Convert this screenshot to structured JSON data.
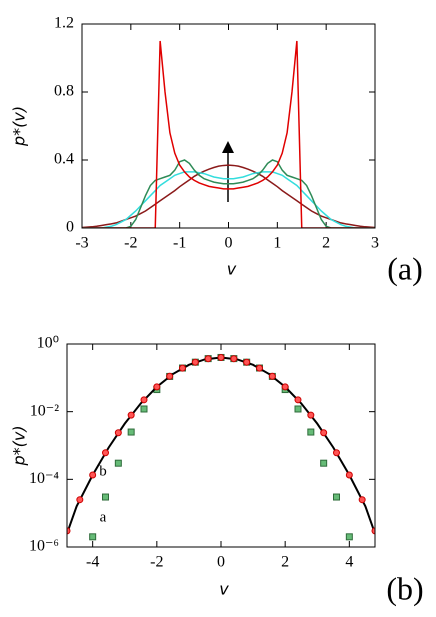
{
  "chart_data": [
    {
      "type": "line",
      "xlabel": "v",
      "ylabel": "p*(v)",
      "panel_label": "(a)",
      "x": [
        -3,
        -2.9,
        -2.8,
        -2.7,
        -2.6,
        -2.5,
        -2.4,
        -2.3,
        -2.2,
        -2.1,
        -2,
        -1.9,
        -1.8,
        -1.7,
        -1.6,
        -1.5,
        -1.4,
        -1.3,
        -1.2,
        -1.1,
        -1,
        -0.9,
        -0.8,
        -0.7,
        -0.6,
        -0.5,
        -0.4,
        -0.3,
        -0.2,
        -0.1,
        0,
        0.1,
        0.2,
        0.3,
        0.4,
        0.5,
        0.6,
        0.7,
        0.8,
        0.9,
        1,
        1.1,
        1.2,
        1.3,
        1.4,
        1.5,
        1.6,
        1.7,
        1.8,
        1.9,
        2,
        2.1,
        2.2,
        2.3,
        2.4,
        2.5,
        2.6,
        2.7,
        2.8,
        2.9,
        3
      ],
      "xlim": [
        -3,
        3
      ],
      "ylim": [
        0,
        1.2
      ],
      "xticks": [
        -3,
        -2,
        -1,
        0,
        1,
        2,
        3
      ],
      "yticks": [
        0,
        0.4,
        0.8,
        1.2
      ],
      "series": [
        {
          "color": "#8b1a1a",
          "values": [
            0.003,
            0.005,
            0.007,
            0.01,
            0.015,
            0.02,
            0.024,
            0.03,
            0.04,
            0.05,
            0.06,
            0.07,
            0.085,
            0.1,
            0.12,
            0.14,
            0.16,
            0.18,
            0.2,
            0.22,
            0.243,
            0.263,
            0.283,
            0.304,
            0.32,
            0.334,
            0.346,
            0.356,
            0.364,
            0.368,
            0.37,
            0.368,
            0.364,
            0.356,
            0.346,
            0.334,
            0.32,
            0.304,
            0.283,
            0.263,
            0.243,
            0.22,
            0.2,
            0.18,
            0.16,
            0.14,
            0.12,
            0.1,
            0.085,
            0.07,
            0.06,
            0.05,
            0.04,
            0.03,
            0.024,
            0.02,
            0.015,
            0.01,
            0.007,
            0.005,
            0.003
          ]
        },
        {
          "color": "#33dddd",
          "values": [
            0,
            0,
            0,
            0,
            0,
            0.005,
            0.01,
            0.02,
            0.035,
            0.05,
            0.075,
            0.1,
            0.13,
            0.16,
            0.19,
            0.22,
            0.25,
            0.27,
            0.29,
            0.31,
            0.32,
            0.33,
            0.33,
            0.33,
            0.325,
            0.32,
            0.31,
            0.3,
            0.295,
            0.29,
            0.29,
            0.29,
            0.295,
            0.3,
            0.31,
            0.32,
            0.325,
            0.33,
            0.33,
            0.33,
            0.32,
            0.31,
            0.29,
            0.27,
            0.25,
            0.22,
            0.19,
            0.16,
            0.13,
            0.1,
            0.075,
            0.05,
            0.035,
            0.02,
            0.01,
            0.005,
            0,
            0,
            0,
            0,
            0
          ]
        },
        {
          "color": "#2e8b57",
          "values": [
            0,
            0,
            0,
            0,
            0,
            0,
            0,
            0,
            0,
            0,
            0.01,
            0.05,
            0.12,
            0.19,
            0.25,
            0.28,
            0.29,
            0.3,
            0.31,
            0.34,
            0.39,
            0.4,
            0.38,
            0.34,
            0.31,
            0.29,
            0.28,
            0.27,
            0.265,
            0.26,
            0.26,
            0.26,
            0.265,
            0.27,
            0.28,
            0.29,
            0.31,
            0.34,
            0.38,
            0.4,
            0.39,
            0.34,
            0.31,
            0.3,
            0.29,
            0.28,
            0.25,
            0.19,
            0.12,
            0.05,
            0.01,
            0,
            0,
            0,
            0,
            0,
            0,
            0,
            0,
            0,
            0
          ]
        },
        {
          "color": "#e00000",
          "values": [
            0,
            0,
            0,
            0,
            0,
            0,
            0,
            0,
            0,
            0,
            0,
            0,
            0,
            0,
            0,
            0,
            1.1,
            0.8,
            0.56,
            0.44,
            0.37,
            0.33,
            0.3,
            0.28,
            0.265,
            0.255,
            0.245,
            0.24,
            0.235,
            0.23,
            0.23,
            0.23,
            0.235,
            0.24,
            0.245,
            0.255,
            0.265,
            0.28,
            0.3,
            0.33,
            0.37,
            0.44,
            0.56,
            0.8,
            1.1,
            0,
            0,
            0,
            0,
            0,
            0,
            0,
            0,
            0,
            0,
            0,
            0,
            0,
            0,
            0,
            0
          ]
        }
      ]
    },
    {
      "type": "scatter",
      "log_y": true,
      "xlabel": "v",
      "ylabel": "p*(v)",
      "panel_label": "(b)",
      "annotations": [
        "a",
        "b"
      ],
      "xlim": [
        -4.8,
        4.8
      ],
      "ylim": [
        1e-06,
        1
      ],
      "xticks": [
        -4,
        -2,
        0,
        2,
        4
      ],
      "yticks": [
        {
          "value": 1,
          "label": "10⁰"
        },
        {
          "value": 0.01,
          "label": "10⁻²"
        },
        {
          "value": 0.0001,
          "label": "10⁻⁴"
        },
        {
          "value": 1e-06,
          "label": "10⁻⁶"
        }
      ],
      "series": [
        {
          "marker": "square",
          "color": "#66bb77",
          "x": [
            -4,
            -3.6,
            -3.2,
            -2.8,
            -2.4,
            -2,
            -1.6,
            -1.2,
            -0.8,
            -0.4,
            0,
            0.4,
            0.8,
            1.2,
            1.6,
            2,
            2.4,
            2.8,
            3.2,
            3.6,
            4
          ],
          "values": [
            2e-06,
            3e-05,
            0.0003,
            0.0025,
            0.012,
            0.045,
            0.11,
            0.195,
            0.29,
            0.37,
            0.4,
            0.37,
            0.29,
            0.195,
            0.11,
            0.045,
            0.012,
            0.0025,
            0.0003,
            3e-05,
            2e-06
          ]
        },
        {
          "marker": "line",
          "color": "#000000",
          "x": [
            -4.8,
            -4.5,
            -4,
            -3.5,
            -3,
            -2.5,
            -2,
            -1.5,
            -1,
            -0.5,
            0,
            0.5,
            1,
            1.5,
            2,
            2.5,
            3,
            3.5,
            4,
            4.5,
            4.8
          ],
          "values": [
            2.5e-06,
            1.6e-05,
            0.000134,
            0.000873,
            0.00443,
            0.0175,
            0.054,
            0.1295,
            0.242,
            0.352,
            0.399,
            0.352,
            0.242,
            0.1295,
            0.054,
            0.0175,
            0.00443,
            0.000873,
            0.000134,
            1.6e-05,
            2.5e-06
          ]
        },
        {
          "marker": "circle",
          "color": "#ff5555",
          "x": [
            -4.8,
            -4.4,
            -4,
            -3.6,
            -3.2,
            -2.8,
            -2.4,
            -2,
            -1.6,
            -1.2,
            -0.8,
            -0.4,
            0,
            0.4,
            0.8,
            1.2,
            1.6,
            2,
            2.4,
            2.8,
            3.2,
            3.6,
            4,
            4.4,
            4.8
          ],
          "values": [
            3e-06,
            2.5e-05,
            0.000134,
            0.00061,
            0.00238,
            0.0079,
            0.0224,
            0.054,
            0.111,
            0.194,
            0.29,
            0.368,
            0.399,
            0.368,
            0.29,
            0.194,
            0.111,
            0.054,
            0.0224,
            0.0079,
            0.00238,
            0.00061,
            0.000134,
            2.5e-05,
            3e-06
          ]
        }
      ]
    }
  ]
}
